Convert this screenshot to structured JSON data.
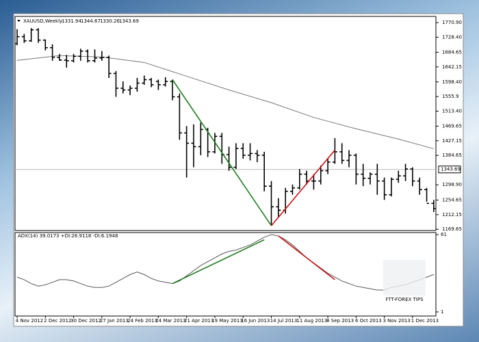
{
  "chart_data": [
    {
      "type": "ohlc",
      "title": "XAUUSD,Weekly",
      "title_values": [
        1331.94,
        1344.67,
        1330.26,
        1343.69
      ],
      "categories": [
        "4 Nov 2012",
        null,
        null,
        null,
        "2 Dec 2012",
        null,
        null,
        null,
        "30 Dec 2012",
        null,
        null,
        null,
        "27 Jan 2013",
        null,
        null,
        null,
        "24 Feb 2013",
        null,
        null,
        null,
        "24 Mar 2013",
        null,
        null,
        null,
        "21 Apr 2013",
        null,
        null,
        null,
        "19 May 2013",
        null,
        null,
        null,
        "16 Jun 2013",
        null,
        null,
        null,
        "14 Jul 2013",
        null,
        null,
        null,
        "11 Aug 2013",
        null,
        null,
        null,
        "8 Sep 2013",
        null,
        null,
        null,
        "6 Oct 2013",
        null,
        null,
        null,
        "3 Nov 2013",
        null,
        null,
        null,
        "1 Dec 2013",
        null,
        null,
        null
      ],
      "open": [
        1710,
        1730,
        1718,
        1750,
        1720,
        1698,
        1670,
        1662,
        1660,
        1673,
        1688,
        1660,
        1668,
        1670,
        1623,
        1580,
        1575,
        1580,
        1595,
        1605,
        1600,
        1590,
        1600,
        1555,
        1450,
        1420,
        1410,
        1460,
        1395,
        1440,
        1387,
        1350,
        1405,
        1385,
        1390,
        1385,
        1295,
        1235,
        1225,
        1280,
        1290,
        1330,
        1310,
        1310,
        1340,
        1365,
        1395,
        1370,
        1385,
        1330,
        1318,
        1330,
        1310,
        1270,
        1315,
        1325,
        1345,
        1310,
        1285,
        1245
      ],
      "high": [
        1752,
        1738,
        1755,
        1755,
        1722,
        1708,
        1680,
        1677,
        1680,
        1695,
        1693,
        1693,
        1688,
        1675,
        1630,
        1600,
        1588,
        1610,
        1617,
        1610,
        1605,
        1612,
        1605,
        1565,
        1470,
        1475,
        1480,
        1465,
        1450,
        1450,
        1410,
        1420,
        1420,
        1420,
        1400,
        1395,
        1310,
        1260,
        1290,
        1300,
        1345,
        1340,
        1330,
        1355,
        1375,
        1435,
        1420,
        1400,
        1390,
        1360,
        1335,
        1360,
        1320,
        1320,
        1340,
        1360,
        1350,
        1320,
        1290,
        1255
      ],
      "low": [
        1705,
        1712,
        1715,
        1712,
        1690,
        1660,
        1660,
        1640,
        1655,
        1660,
        1655,
        1655,
        1660,
        1610,
        1555,
        1565,
        1560,
        1570,
        1590,
        1583,
        1575,
        1585,
        1545,
        1430,
        1320,
        1350,
        1385,
        1380,
        1390,
        1360,
        1340,
        1345,
        1375,
        1370,
        1365,
        1280,
        1180,
        1205,
        1215,
        1270,
        1285,
        1300,
        1285,
        1300,
        1330,
        1360,
        1360,
        1350,
        1300,
        1295,
        1300,
        1270,
        1255,
        1265,
        1305,
        1310,
        1295,
        1270,
        1250,
        1220
      ],
      "close": [
        1730,
        1718,
        1750,
        1720,
        1698,
        1670,
        1662,
        1660,
        1673,
        1688,
        1660,
        1668,
        1670,
        1623,
        1580,
        1575,
        1580,
        1595,
        1605,
        1590,
        1590,
        1600,
        1555,
        1450,
        1420,
        1410,
        1460,
        1395,
        1440,
        1387,
        1350,
        1405,
        1385,
        1390,
        1385,
        1295,
        1235,
        1225,
        1280,
        1290,
        1330,
        1310,
        1310,
        1340,
        1365,
        1395,
        1370,
        1385,
        1330,
        1318,
        1330,
        1310,
        1270,
        1315,
        1325,
        1345,
        1310,
        1285,
        1245,
        1230
      ],
      "color": "#000000",
      "ma": {
        "color": "#777777",
        "x": [
          0,
          6,
          12,
          18,
          24,
          30,
          36,
          42,
          48,
          54,
          59
        ],
        "values": [
          1661,
          1675,
          1671,
          1655,
          1615,
          1575,
          1538,
          1495,
          1462,
          1432,
          1404
        ]
      },
      "lines": [
        {
          "color": "#1b7a1b",
          "x": [
            22,
            36
          ],
          "y": [
            1605,
            1180
          ]
        },
        {
          "color": "#cc1111",
          "x": [
            36,
            45
          ],
          "y": [
            1180,
            1400
          ]
        }
      ],
      "bid": 1343.69,
      "ylim": [
        1166,
        1789
      ],
      "yticks": [
        {
          "value": 1770.9,
          "label": "1770.90"
        },
        {
          "value": 1728.4,
          "label": "1728.40"
        },
        1684.65,
        1642.15,
        {
          "value": 1598.4,
          "label": "1598.40"
        },
        1555.9,
        {
          "value": 1513.4,
          "label": "1513.40"
        },
        1469.65,
        1427.15,
        1384.65,
        {
          "value": 1298.9,
          "label": "1298.90"
        },
        1254.65,
        1212.15,
        1169.65
      ]
    },
    {
      "type": "line",
      "title": "ADX(14) 39.0173 +DI:26.9118 -DI:6.1948",
      "watermark": "FTT-FOREX TIPS",
      "color": "#555555",
      "values": [
        28,
        26,
        23,
        21,
        22,
        24,
        26,
        26,
        25,
        23,
        21,
        20,
        20,
        21,
        24,
        27,
        30,
        32,
        30,
        27,
        25,
        24,
        23,
        25,
        29,
        33,
        37,
        40,
        43,
        46,
        48,
        49,
        51,
        53,
        56,
        59,
        61,
        60,
        57,
        53,
        48,
        43,
        39,
        35,
        31,
        28,
        25,
        23,
        21,
        20,
        19,
        18,
        18,
        20,
        21,
        22,
        24,
        26,
        28,
        30
      ],
      "lines": [
        {
          "color": "#1b7a1b",
          "x": [
            22,
            35
          ],
          "y": [
            23,
            57
          ]
        },
        {
          "color": "#cc1111",
          "x": [
            37,
            45
          ],
          "y": [
            60,
            26
          ]
        }
      ],
      "ylim": [
        -2.2,
        62.6
      ],
      "yticks": [
        61,
        1
      ]
    }
  ]
}
